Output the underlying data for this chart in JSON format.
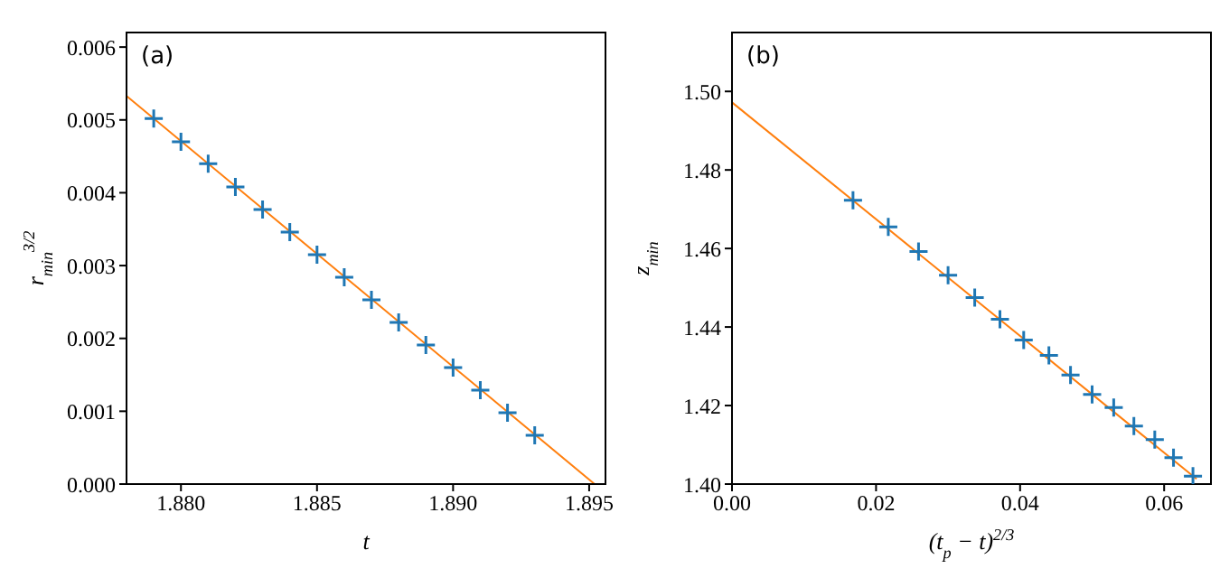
{
  "chart_data": [
    {
      "type": "scatter",
      "xlabel": "t",
      "ylabel": "r$_{min}$$^{3/2}$",
      "annotations": [
        "(a)"
      ],
      "marker": "cross",
      "grid": false,
      "legend": false,
      "xlim": [
        1.878,
        1.8956
      ],
      "xticks": [
        {
          "value": 1.88,
          "label": "1.880"
        },
        1.885,
        {
          "value": 1.89,
          "label": "1.890"
        },
        1.895
      ],
      "ylim": [
        0,
        0.0062
      ],
      "yticks": [
        {
          "value": 0,
          "label": "0.000"
        },
        0.001,
        0.002,
        0.003,
        0.004,
        0.005,
        0.006
      ],
      "series": [
        {
          "type": "scatter",
          "color": "#1f77b4",
          "x": [
            1.879,
            1.88,
            1.881,
            1.882,
            1.883,
            1.884,
            1.885,
            1.886,
            1.887,
            1.888,
            1.889,
            1.89,
            1.891,
            1.892,
            1.893
          ],
          "values": [
            0.00502,
            0.0047,
            0.0044,
            0.00408,
            0.00377,
            0.00346,
            0.00315,
            0.00284,
            0.00253,
            0.00222,
            0.00191,
            0.0016,
            0.00129,
            0.00098,
            0.00067
          ]
        },
        {
          "type": "line",
          "color": "#ff7f0e",
          "marker": "none",
          "x": [
            1.878,
            1.8952
          ],
          "values": [
            0.00533,
            0
          ]
        }
      ]
    },
    {
      "type": "scatter",
      "xlabel": "(t$_{p}$ − t)$^{2/3}$",
      "ylabel": "z$_{min}$",
      "annotations": [
        "(b)"
      ],
      "marker": "cross",
      "grid": false,
      "legend": false,
      "xlim": [
        0,
        0.0665
      ],
      "xticks": [
        {
          "value": 0,
          "label": "0.00"
        },
        0.02,
        0.04,
        0.06
      ],
      "ylim": [
        1.4,
        1.515
      ],
      "yticks": [
        {
          "value": 1.4,
          "label": "1.40"
        },
        1.42,
        1.44,
        1.46,
        1.48,
        {
          "value": 1.5,
          "label": "1.50"
        }
      ],
      "series": [
        {
          "type": "scatter",
          "color": "#1f77b4",
          "x": [
            0.0168,
            0.0217,
            0.0259,
            0.03,
            0.0337,
            0.0372,
            0.0405,
            0.044,
            0.047,
            0.05,
            0.053,
            0.0558,
            0.0587,
            0.0613,
            0.064
          ],
          "values": [
            1.4723,
            1.4655,
            1.4592,
            1.4532,
            1.4475,
            1.442,
            1.4367,
            1.4328,
            1.4278,
            1.4228,
            1.4195,
            1.4148,
            1.4113,
            1.4067,
            1.402
          ]
        },
        {
          "type": "line",
          "color": "#ff7f0e",
          "marker": "none",
          "x": [
            0,
            0.0645
          ],
          "values": [
            1.4972,
            1.4013
          ]
        }
      ]
    }
  ]
}
